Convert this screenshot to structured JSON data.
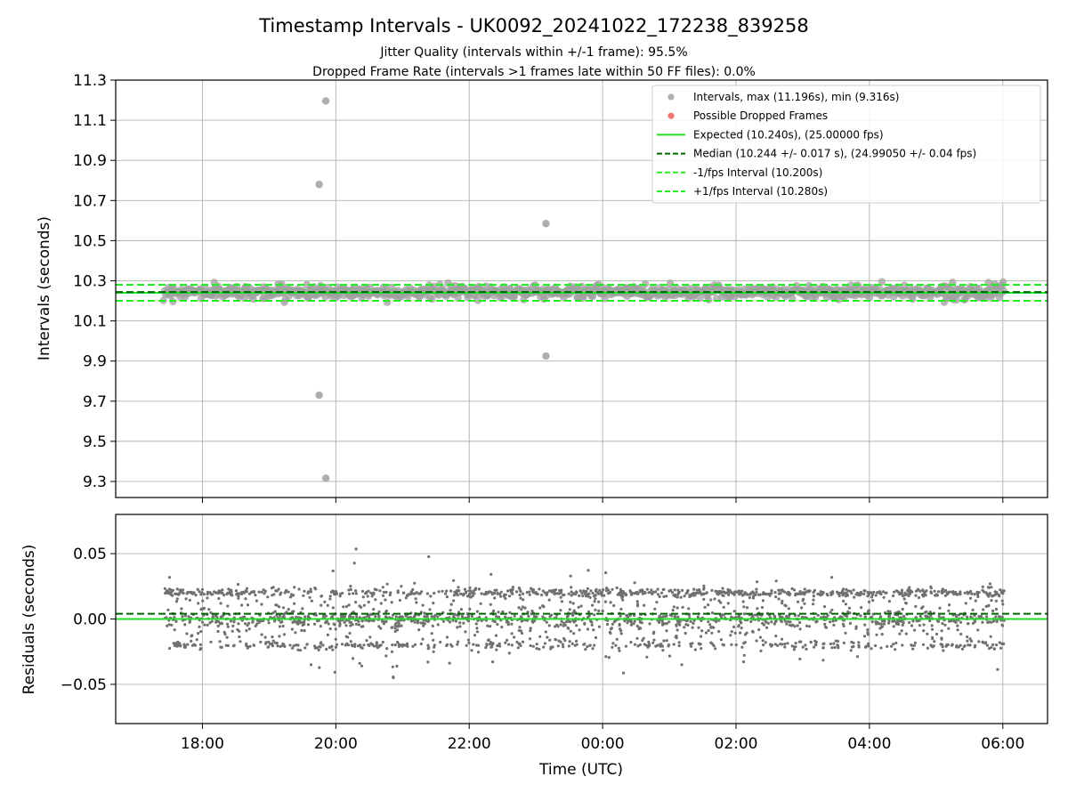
{
  "chart_data": [
    {
      "type": "scatter",
      "title": "Timestamp Intervals - UK0092_20241022_172238_839258",
      "subtitle_lines": [
        "Jitter Quality (intervals within +/-1 frame): 95.5%",
        "Dropped Frame Rate (intervals >1 frames late within 50 FF files): 0.0%"
      ],
      "ylabel": "Intervals (seconds)",
      "xlabel": "",
      "ylim": [
        9.22,
        11.3
      ],
      "yticks": [
        "11.3",
        "11.1",
        "10.9",
        "10.7",
        "10.5",
        "10.3",
        "10.1",
        "9.9",
        "9.7",
        "9.5",
        "9.3"
      ],
      "ytick_values": [
        11.3,
        11.1,
        10.9,
        10.7,
        10.5,
        10.3,
        10.1,
        9.9,
        9.7,
        9.5,
        9.3
      ],
      "grid": true,
      "legend_position": "top-right",
      "legend": [
        {
          "label": "Intervals, max (11.196s), min (9.316s)",
          "kind": "marker",
          "color": "#a0a0a0"
        },
        {
          "label": "Possible Dropped Frames",
          "kind": "marker",
          "color": "#f06060"
        },
        {
          "label": "Expected (10.240s), (25.00000 fps)",
          "kind": "line",
          "style": "solid",
          "color": "#22dd22"
        },
        {
          "label": "Median (10.244 +/- 0.017 s), (24.99050 +/- 0.04 fps)",
          "kind": "line",
          "style": "dashed",
          "color": "#006400"
        },
        {
          "label": "-1/fps Interval (10.200s)",
          "kind": "line",
          "style": "dashed",
          "color": "#22ee22"
        },
        {
          "label": "+1/fps Interval (10.280s)",
          "kind": "line",
          "style": "dashed",
          "color": "#22ee22"
        }
      ],
      "reference_lines": [
        {
          "name": "expected",
          "y": 10.24,
          "style": "solid",
          "color": "#22dd22"
        },
        {
          "name": "median",
          "y": 10.244,
          "style": "dashed",
          "color": "#006400"
        },
        {
          "name": "minus-one-fps",
          "y": 10.2,
          "style": "dashed",
          "color": "#22ee22"
        },
        {
          "name": "plus-one-fps",
          "y": 10.28,
          "style": "dashed",
          "color": "#22ee22"
        }
      ],
      "outliers": [
        {
          "t": 19.85,
          "y": 11.196
        },
        {
          "t": 19.75,
          "y": 10.78
        },
        {
          "t": 23.15,
          "y": 10.585
        },
        {
          "t": 23.15,
          "y": 9.925
        },
        {
          "t": 19.75,
          "y": 9.73
        },
        {
          "t": 19.85,
          "y": 9.316
        }
      ],
      "bulk_band": {
        "t_start": 17.42,
        "t_end": 30.02,
        "y_center": 10.245,
        "spread": 0.035
      },
      "point_color": "#a0a0a0"
    },
    {
      "type": "scatter",
      "ylabel": "Residuals (seconds)",
      "xlabel": "Time (UTC)",
      "ylim": [
        -0.08,
        0.08
      ],
      "yticks": [
        "0.05",
        "0.00",
        "−0.05"
      ],
      "ytick_values": [
        0.05,
        0.0,
        -0.05
      ],
      "xlim_hours": [
        16.7,
        30.67
      ],
      "xticks": [
        "18:00",
        "20:00",
        "22:00",
        "00:00",
        "02:00",
        "04:00",
        "06:00"
      ],
      "xtick_hours": [
        18,
        20,
        22,
        24,
        26,
        28,
        30
      ],
      "grid": true,
      "reference_lines": [
        {
          "name": "expected",
          "y": 0.0,
          "style": "solid",
          "color": "#22dd22"
        },
        {
          "name": "median",
          "y": 0.004,
          "style": "dashed",
          "color": "#006400"
        }
      ],
      "residual_bands": {
        "t_start": 17.42,
        "t_end": 30.02,
        "levels": [
          0.02,
          0.0,
          -0.02
        ],
        "noise": 0.012
      },
      "point_color": "#707070"
    }
  ]
}
